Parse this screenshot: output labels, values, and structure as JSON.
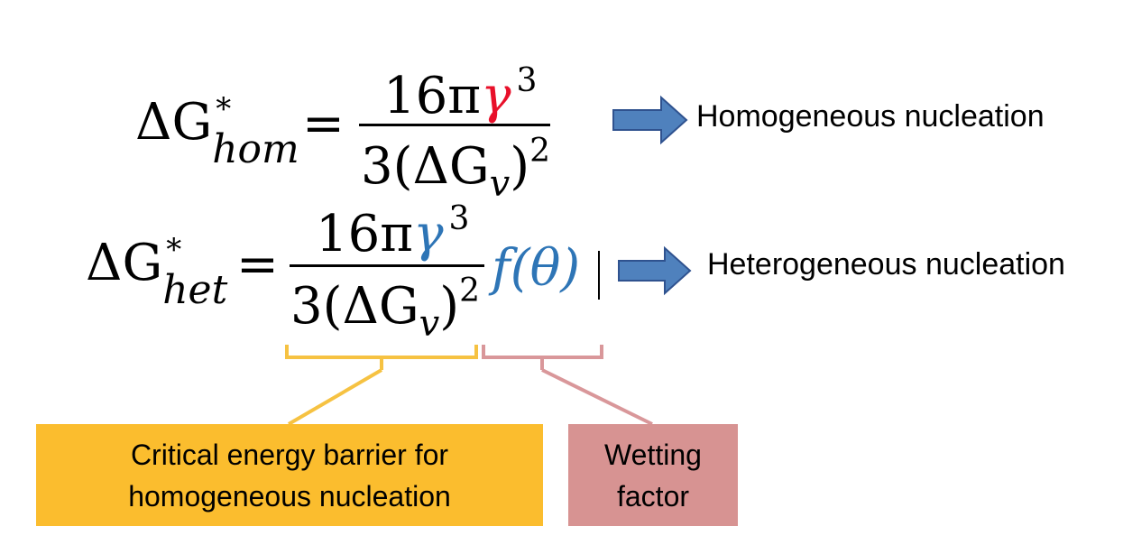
{
  "equations": {
    "homogeneous": {
      "lhs_symbol": "ΔG",
      "lhs_superscript": "*",
      "lhs_subscript": "hom",
      "equals": "=",
      "numerator_coeff": "16π",
      "numerator_gamma": "γ",
      "numerator_exp": "3",
      "denominator_main": "3(ΔG",
      "denominator_sub": "v",
      "denominator_close": ")",
      "denominator_exp": "2"
    },
    "heterogeneous": {
      "lhs_symbol": "ΔG",
      "lhs_superscript": "*",
      "lhs_subscript": "het",
      "equals": "=",
      "numerator_coeff": "16π",
      "numerator_gamma": "γ",
      "numerator_exp": "3",
      "denominator_main": "3(ΔG",
      "denominator_sub": "v",
      "denominator_close": ")",
      "denominator_exp": "2",
      "factor": "f(θ)"
    }
  },
  "labels": {
    "homogeneous": "Homogeneous nucleation",
    "heterogeneous": "Heterogeneous nucleation"
  },
  "callouts": {
    "critical_barrier": [
      "Critical energy barrier for",
      "homogeneous nucleation"
    ],
    "wetting": [
      "Wetting",
      "factor"
    ]
  },
  "colors": {
    "gamma_red": "#e8102a",
    "gamma_blue": "#2e75b6",
    "arrow_fill": "#4f81bd",
    "arrow_stroke": "#2f528f",
    "gold_box": "#fbbd2e",
    "gold_bracket": "#f6c242",
    "pink_box": "#d79392",
    "pink_bracket": "#d9979a"
  }
}
